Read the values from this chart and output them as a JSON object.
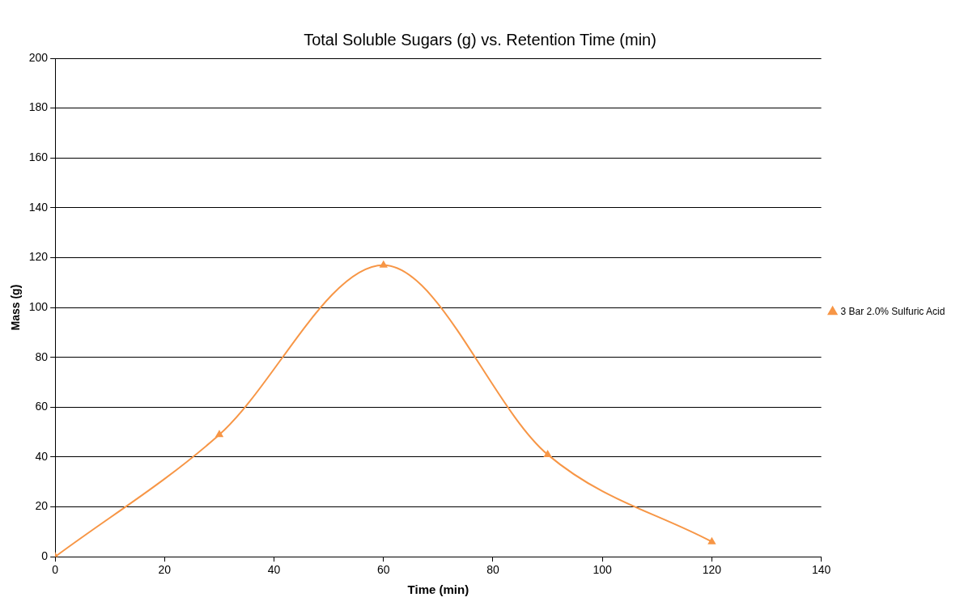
{
  "chart_data": {
    "type": "line",
    "title": "Total Soluble Sugars (g) vs. Retention Time (min)",
    "xlabel": "Time (min)",
    "ylabel": "Mass (g)",
    "x": [
      0,
      30,
      60,
      90,
      120
    ],
    "series": [
      {
        "name": "3 Bar 2.0% Sulfuric Acid",
        "color": "#f79646",
        "values": [
          0,
          49,
          117,
          41,
          6
        ]
      }
    ],
    "xlim": [
      0,
      140
    ],
    "xticks": [
      0,
      20,
      40,
      60,
      80,
      100,
      120,
      140
    ],
    "ylim": [
      0,
      200
    ],
    "yticks": [
      0,
      20,
      40,
      60,
      80,
      100,
      120,
      140,
      160,
      180,
      200
    ],
    "grid": "y",
    "legend": "right",
    "marker": "triangle",
    "line_style": "solid"
  }
}
